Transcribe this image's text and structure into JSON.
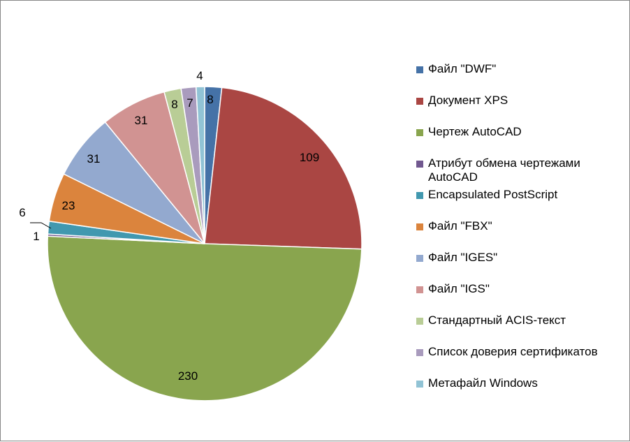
{
  "chart_data": {
    "type": "pie",
    "title": "",
    "start_angle_deg": 0,
    "direction": "clockwise",
    "legend_position": "right",
    "slices": [
      {
        "label": "Файл \"DWF\"",
        "value": 8,
        "color": "#4572A7"
      },
      {
        "label": "Документ XPS",
        "value": 109,
        "color": "#AA4643"
      },
      {
        "label": "Чертеж AutoCAD",
        "value": 230,
        "color": "#89A54E"
      },
      {
        "label": "Атрибут обмена чертежами AutoCAD",
        "value": 1,
        "color": "#71588F"
      },
      {
        "label": "Encapsulated PostScript",
        "value": 6,
        "color": "#4198AF"
      },
      {
        "label": "Файл \"FBX\"",
        "value": 23,
        "color": "#DB843D"
      },
      {
        "label": "Файл \"IGES\"",
        "value": 31,
        "color": "#93A9CF"
      },
      {
        "label": "Файл \"IGS\"",
        "value": 31,
        "color": "#D19392"
      },
      {
        "label": "Стандартный ACIS-текст",
        "value": 8,
        "color": "#B9CD96"
      },
      {
        "label": "Список доверия сертификатов",
        "value": 7,
        "color": "#A99BBD"
      },
      {
        "label": "Метафайл Windows",
        "value": 4,
        "color": "#91C3D5"
      }
    ]
  }
}
